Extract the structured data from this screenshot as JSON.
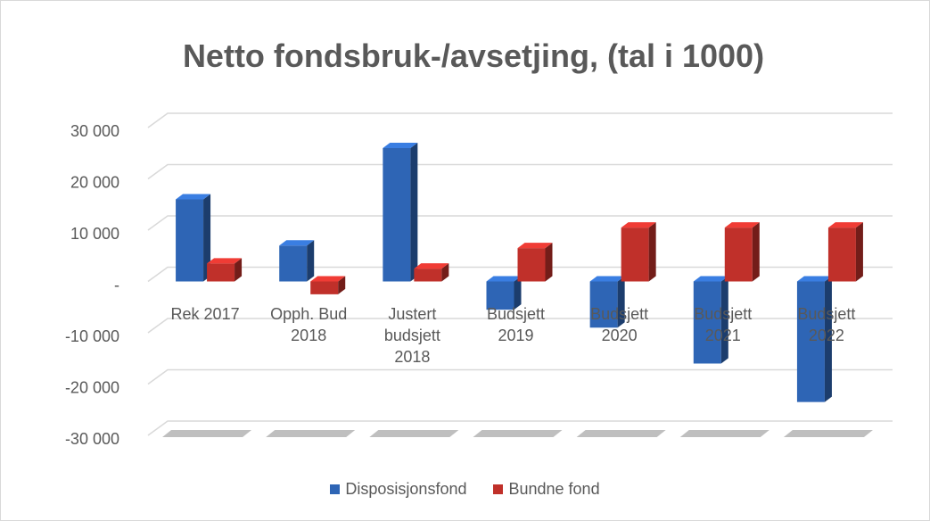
{
  "chart_data": {
    "type": "bar",
    "title": "Netto fondsbruk-/avsetjing, (tal i 1000)",
    "categories": [
      "Rek 2017",
      "Opph. Bud 2018",
      "Justert budsjett 2018",
      "Budsjett 2019",
      "Budsjett 2020",
      "Budsjett 2021",
      "Budsjett 2022"
    ],
    "series": [
      {
        "name": "Disposisjonsfond",
        "color": "#2e65b5",
        "values": [
          16000,
          7000,
          26000,
          -5500,
          -9000,
          -16000,
          -23500
        ]
      },
      {
        "name": "Bundne fond",
        "color": "#c0302a",
        "values": [
          3500,
          -2500,
          2500,
          6500,
          10500,
          10500,
          10500
        ]
      }
    ],
    "ylim": [
      -30000,
      30000
    ],
    "yticks": [
      {
        "value": -30000,
        "label": "-30 000"
      },
      {
        "value": -20000,
        "label": "-20 000"
      },
      {
        "value": -10000,
        "label": "-10 000"
      },
      {
        "value": 0,
        "label": "-"
      },
      {
        "value": 10000,
        "label": "10 000"
      },
      {
        "value": 20000,
        "label": "20 000"
      },
      {
        "value": 30000,
        "label": "30 000"
      }
    ],
    "grid": true,
    "legend": "bottom"
  }
}
